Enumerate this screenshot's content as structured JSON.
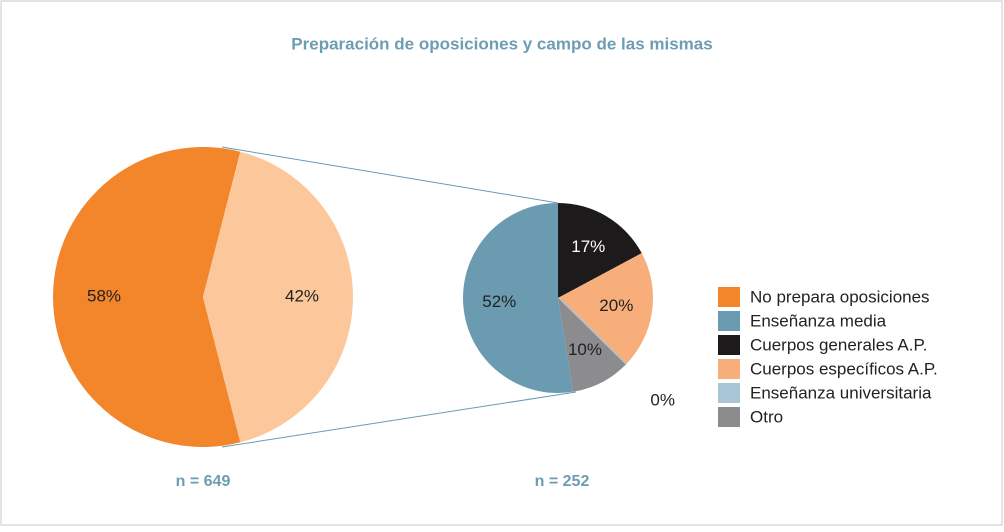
{
  "chart_data": [
    {
      "type": "pie",
      "title": "Preparación de oposiciones y campo de las mismas",
      "categories": [
        "No prepara oposiciones",
        null
      ],
      "values": [
        58,
        42
      ],
      "value_labels": [
        "58%",
        "42%"
      ],
      "colors": [
        "#f3862b",
        "#fcc89b"
      ],
      "annotation": "n = 649"
    },
    {
      "type": "pie",
      "categories": [
        "Cuerpos generales A.P.",
        "Cuerpos específicos A.P.",
        "Enseñanza universitaria",
        "Otro",
        "Enseñanza media"
      ],
      "values": [
        17,
        20,
        0,
        10,
        52
      ],
      "value_labels": [
        "17%",
        "20%",
        "0%",
        "10%",
        "52%"
      ],
      "colors": [
        "#1d1a1b",
        "#f8ae7b",
        "#a9c6d6",
        "#8c8b8d",
        "#6b9bb0"
      ],
      "annotation": "n = 252"
    }
  ]
}
